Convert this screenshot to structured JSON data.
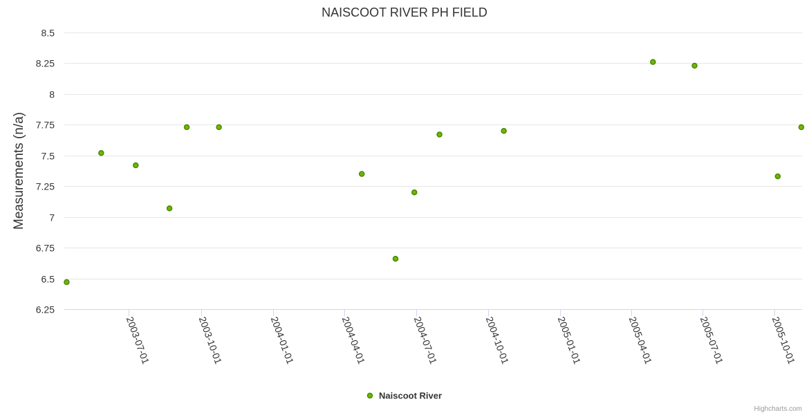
{
  "chart_data": {
    "type": "scatter",
    "title": "NAISCOOT RIVER PH FIELD",
    "ylabel": "Measurements (n/a)",
    "xlabel": "",
    "x_axis_type": "date",
    "xlim": [
      "2003-04-10",
      "2005-11-05"
    ],
    "ylim": [
      6.25,
      8.5
    ],
    "y_ticks": [
      "6.25",
      "6.5",
      "6.75",
      "7",
      "7.25",
      "7.5",
      "7.75",
      "8",
      "8.25",
      "8.5"
    ],
    "x_ticks": [
      "2003-07-01",
      "2003-10-01",
      "2004-01-01",
      "2004-04-01",
      "2004-07-01",
      "2004-10-01",
      "2005-01-01",
      "2005-04-01",
      "2005-07-01",
      "2005-10-01"
    ],
    "grid": "horizontal",
    "legend_position": "bottom-center",
    "series": [
      {
        "name": "Naiscoot River",
        "color": "#6eb804",
        "border_color": "#4c8600",
        "points": [
          {
            "x": "2003-04-13",
            "y": 6.47
          },
          {
            "x": "2003-05-27",
            "y": 7.52
          },
          {
            "x": "2003-07-10",
            "y": 7.42
          },
          {
            "x": "2003-08-22",
            "y": 7.07
          },
          {
            "x": "2003-09-13",
            "y": 7.73
          },
          {
            "x": "2003-10-24",
            "y": 7.73
          },
          {
            "x": "2004-04-23",
            "y": 7.35
          },
          {
            "x": "2004-06-05",
            "y": 6.66
          },
          {
            "x": "2004-06-29",
            "y": 7.2
          },
          {
            "x": "2004-07-31",
            "y": 7.67
          },
          {
            "x": "2004-10-21",
            "y": 7.7
          },
          {
            "x": "2005-04-29",
            "y": 8.26
          },
          {
            "x": "2005-06-21",
            "y": 8.23
          },
          {
            "x": "2005-10-05",
            "y": 7.33
          },
          {
            "x": "2005-11-04",
            "y": 7.73
          }
        ]
      }
    ]
  },
  "credits": "Highcharts.com"
}
